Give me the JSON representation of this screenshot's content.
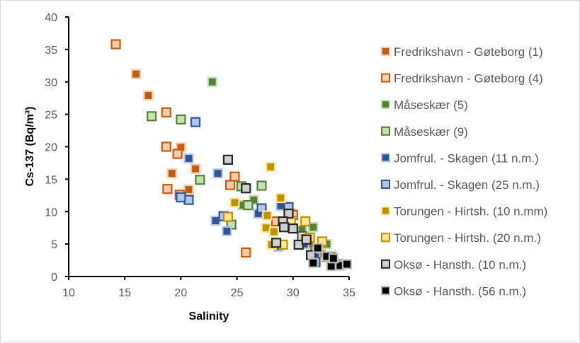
{
  "chart_data": {
    "type": "scatter",
    "title": "",
    "xlabel": "Salinity",
    "ylabel": "Cs-137 (Bq/m³)",
    "xlim": [
      10,
      35
    ],
    "ylim": [
      0,
      40
    ],
    "xticks": [
      "10",
      "15",
      "20",
      "25",
      "30",
      "35"
    ],
    "yticks": [
      "0",
      "5",
      "10",
      "15",
      "20",
      "25",
      "30",
      "35",
      "40"
    ],
    "grid": false,
    "legend_position": "right",
    "series": [
      {
        "name": "Fredrikshavn - Gøteborg (1)",
        "fill": "#C55A11",
        "stroke": "#F8CBAD",
        "x": [
          16.0,
          17.1,
          19.2,
          20.0,
          20.7,
          21.3,
          29.8,
          31.5,
          32.5
        ],
        "y": [
          31.2,
          27.9,
          15.9,
          19.9,
          13.4,
          16.6,
          9.8,
          5.0,
          3.5
        ]
      },
      {
        "name": "Fredrikshavn - Gøteborg (4)",
        "fill": "#F8CBAD",
        "stroke": "#C55A11",
        "x": [
          14.2,
          18.7,
          18.8,
          19.7,
          19.9,
          18.7,
          24.8,
          24.4,
          25.8,
          28.5,
          30.0
        ],
        "y": [
          35.8,
          20.0,
          13.5,
          18.9,
          12.6,
          25.3,
          15.4,
          14.1,
          3.7,
          8.5,
          9.5
        ]
      },
      {
        "name": "Måseskær (5)",
        "fill": "#548235",
        "stroke": "#C5E0B4",
        "x": [
          22.8,
          25.5,
          26.5,
          30.8,
          31.8,
          33.0,
          33.5
        ],
        "y": [
          30.0,
          11.0,
          11.8,
          7.2,
          7.6,
          5.0,
          3.2
        ]
      },
      {
        "name": "Måseskær (9)",
        "fill": "#C5E0B4",
        "stroke": "#548235",
        "x": [
          17.4,
          20.0,
          21.7,
          25.4,
          27.2,
          26.0,
          24.5,
          31.0,
          32.0,
          33.0
        ],
        "y": [
          24.7,
          24.2,
          14.9,
          13.9,
          14.0,
          11.0,
          8.0,
          6.0,
          4.0,
          3.0
        ]
      },
      {
        "name": "Jomfrul. - Skagen (11 n.m.)",
        "fill": "#2F5597",
        "stroke": "#B4C7E7",
        "x": [
          20.7,
          23.3,
          23.1,
          24.1,
          26.9,
          28.7,
          28.9,
          31.0,
          32.0,
          34.0
        ],
        "y": [
          18.2,
          15.9,
          8.6,
          7.0,
          9.7,
          4.6,
          10.9,
          5.0,
          3.0,
          2.0
        ]
      },
      {
        "name": "Jomfrul. - Skagen (25 n.m.)",
        "fill": "#B4C7E7",
        "stroke": "#2F5597",
        "x": [
          21.3,
          20.7,
          20.0,
          29.6,
          23.8,
          30.8,
          32.0,
          27.2
        ],
        "y": [
          23.8,
          11.8,
          12.2,
          10.7,
          9.3,
          6.2,
          2.2,
          10.5
        ]
      },
      {
        "name": "Torungen - Hirtsh. (10 n.mm)",
        "fill": "#BF9000",
        "stroke": "#FFE699",
        "x": [
          28.0,
          28.9,
          24.8,
          27.7,
          27.6,
          28.1,
          28.3,
          30.0,
          31.0
        ],
        "y": [
          16.9,
          12.1,
          11.4,
          9.4,
          7.5,
          4.9,
          6.9,
          7.5,
          6.0
        ]
      },
      {
        "name": "Torungen - Hirtsh. (20 n.m.)",
        "fill": "#FFE699",
        "stroke": "#BF9000",
        "x": [
          24.2,
          29.1,
          31.1,
          32.6,
          29.8,
          31.5,
          33.0
        ],
        "y": [
          9.2,
          4.9,
          8.5,
          5.4,
          8.6,
          6.0,
          3.0
        ]
      },
      {
        "name": "Oksø - Hansth. (10 n.m.)",
        "fill": "#D0D0D0",
        "stroke": "#262626",
        "x": [
          24.2,
          25.8,
          29.6,
          29.1,
          29.2,
          30.0,
          28.5,
          30.5,
          31.2,
          31.6
        ],
        "y": [
          18.0,
          13.6,
          9.7,
          8.5,
          7.6,
          7.4,
          5.2,
          4.9,
          5.7,
          3.3
        ]
      },
      {
        "name": "Oksø - Hansth. (56 n.m.)",
        "fill": "#000000",
        "stroke": "#BFBFBF",
        "x": [
          32.2,
          33.0,
          31.8,
          33.4,
          34.2,
          34.8,
          33.6
        ],
        "y": [
          4.4,
          3.1,
          2.1,
          1.6,
          1.7,
          1.9,
          2.8
        ]
      }
    ]
  }
}
